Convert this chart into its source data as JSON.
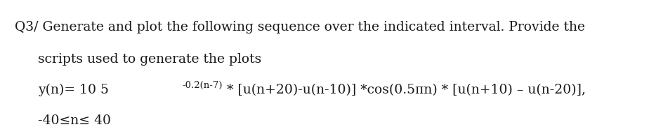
{
  "line1": "Q3/ Generate and plot the following sequence over the indicated interval. Provide the",
  "line2": "scripts used to generate the plots",
  "line3_prefix": "y(n)= 10 5",
  "line3_superscript": "-0.2(n-7)",
  "line3_suffix": " * [u(n+20)-u(n-10)] *cos(0.5πn) * [u(n+10) – u(n-20)],",
  "line4": "-40≤n≤ 40",
  "font_size_main": 13.5,
  "font_size_super": 9.5,
  "text_color": "#1a1a1a",
  "bg_color": "#ffffff"
}
